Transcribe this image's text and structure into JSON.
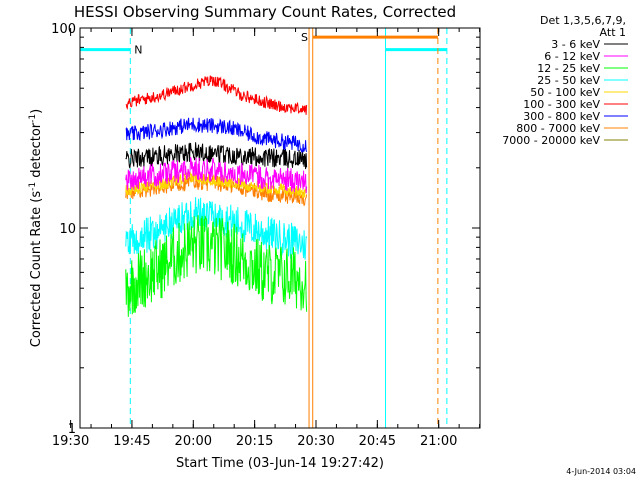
{
  "chart_data": {
    "type": "line",
    "title": "HESSI Observing Summary Count Rates, Corrected",
    "xlabel": "Start Time (03-Jun-14 19:27:42)",
    "ylabel_main": "Corrected Count Rate (s",
    "ylabel_sup1": "-1",
    "ylabel_mid": " detector",
    "ylabel_sup2": "-1",
    "ylabel_end": ")",
    "yscale": "log",
    "ylim": [
      1,
      100
    ],
    "xlim_minutes": [
      -27.7,
      70.1
    ],
    "x_ticks": [
      {
        "label": "19:30",
        "minutes": -30
      },
      {
        "label": "19:45",
        "minutes": -15
      },
      {
        "label": "20:00",
        "minutes": 0
      },
      {
        "label": "20:15",
        "minutes": 15
      },
      {
        "label": "20:30",
        "minutes": 30
      },
      {
        "label": "20:45",
        "minutes": 45
      },
      {
        "label": "21:00",
        "minutes": 60
      }
    ],
    "y_ticks": [
      {
        "label": "1",
        "value": 1
      },
      {
        "label": "10",
        "value": 10
      },
      {
        "label": "100",
        "value": 100
      }
    ],
    "legend_header": [
      "Det 1,3,5,6,7,9,",
      "Att 1"
    ],
    "series": [
      {
        "name": "3 - 6 keV",
        "color": "#000000",
        "points": [
          [
            -16.5,
            22
          ],
          [
            -8,
            23
          ],
          [
            0,
            24
          ],
          [
            8,
            23.5
          ],
          [
            17,
            22.5
          ],
          [
            27.7,
            22
          ]
        ],
        "noise": 0.05
      },
      {
        "name": "6 - 12 keV",
        "color": "#ff00ff",
        "points": [
          [
            -16.5,
            17.5
          ],
          [
            -8,
            18.5
          ],
          [
            0,
            20
          ],
          [
            8,
            19
          ],
          [
            17,
            18
          ],
          [
            27.7,
            17
          ]
        ],
        "noise": 0.06
      },
      {
        "name": "12 - 25 keV",
        "color": "#00ff00",
        "points": [
          [
            -16.5,
            5
          ],
          [
            -8,
            6.3
          ],
          [
            0,
            8.3
          ],
          [
            8,
            7.8
          ],
          [
            17,
            6
          ],
          [
            27.7,
            5.5
          ]
        ],
        "noise": 0.16
      },
      {
        "name": "25 - 50 keV",
        "color": "#00ffff",
        "points": [
          [
            -16.5,
            8.2
          ],
          [
            -8,
            9.8
          ],
          [
            0,
            12
          ],
          [
            8,
            11
          ],
          [
            17,
            9.5
          ],
          [
            27.7,
            8.2
          ]
        ],
        "noise": 0.09
      },
      {
        "name": "50 - 100 keV",
        "color": "#ffd700",
        "points": [
          [
            -16.5,
            15.5
          ],
          [
            -8,
            16.5
          ],
          [
            0,
            18
          ],
          [
            8,
            17
          ],
          [
            17,
            16
          ],
          [
            27.7,
            15
          ]
        ],
        "noise": 0.03
      },
      {
        "name": "100 - 300 keV",
        "color": "#ff0000",
        "points": [
          [
            -16.5,
            42
          ],
          [
            -8,
            46
          ],
          [
            0,
            52
          ],
          [
            5,
            55
          ],
          [
            12,
            46
          ],
          [
            20,
            41
          ],
          [
            27.7,
            39
          ]
        ],
        "noise": 0.03
      },
      {
        "name": "300 - 800 keV",
        "color": "#0000ff",
        "points": [
          [
            -16.5,
            29
          ],
          [
            -8,
            31
          ],
          [
            0,
            33
          ],
          [
            8,
            32
          ],
          [
            17,
            28
          ],
          [
            27.7,
            26
          ]
        ],
        "noise": 0.04
      },
      {
        "name": "800 - 7000 keV",
        "color": "#ff8000",
        "points": [
          [
            -16.5,
            15
          ],
          [
            -8,
            16
          ],
          [
            0,
            17
          ],
          [
            8,
            16.5
          ],
          [
            17,
            15
          ],
          [
            27.7,
            14
          ]
        ],
        "noise": 0.04
      },
      {
        "name": "7000 - 20000 keV",
        "color": "#808000",
        "points": [],
        "noise": 0
      }
    ],
    "annotations": [
      {
        "type": "night",
        "label": "N",
        "color": "#00ffff",
        "level": 78,
        "segments": [
          [
            -27.7,
            -15.4
          ],
          [
            47,
            62
          ]
        ],
        "boundaries": [
          {
            "minutes": -15.4,
            "style": "dashed"
          },
          {
            "minutes": 47,
            "style": "solid"
          },
          {
            "minutes": 62,
            "style": "dashed"
          }
        ]
      },
      {
        "type": "saa",
        "label": "S",
        "color": "#ff8000",
        "level": 90,
        "segments": [
          [
            29.2,
            59.8
          ]
        ],
        "boundaries": [
          {
            "minutes": 28.3,
            "style": "solid"
          },
          {
            "minutes": 29.2,
            "style": "solid"
          },
          {
            "minutes": 59.8,
            "style": "dashed"
          }
        ]
      }
    ],
    "footer_date": "4-Jun-2014 03:04"
  }
}
